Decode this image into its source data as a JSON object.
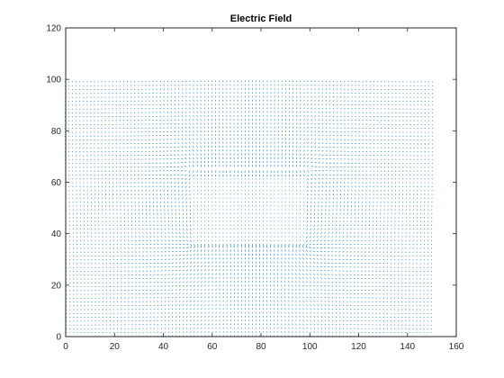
{
  "chart_data": {
    "type": "quiver",
    "title": "Electric Field",
    "xlabel": "",
    "ylabel": "",
    "xlim": [
      0,
      160
    ],
    "ylim": [
      0,
      120
    ],
    "xticks": [
      0,
      20,
      40,
      60,
      80,
      100,
      120,
      140,
      160
    ],
    "yticks": [
      0,
      20,
      40,
      60,
      80,
      100,
      120
    ],
    "grid": false,
    "legend": "none",
    "color": "#0072BD",
    "field": {
      "x_range": [
        0,
        150
      ],
      "y_range": [
        0,
        100
      ],
      "spacing": 1.5,
      "plates": [
        {
          "x": [
            50,
            100
          ],
          "y": 65
        },
        {
          "x": [
            50,
            100
          ],
          "y": 35
        }
      ]
    }
  }
}
